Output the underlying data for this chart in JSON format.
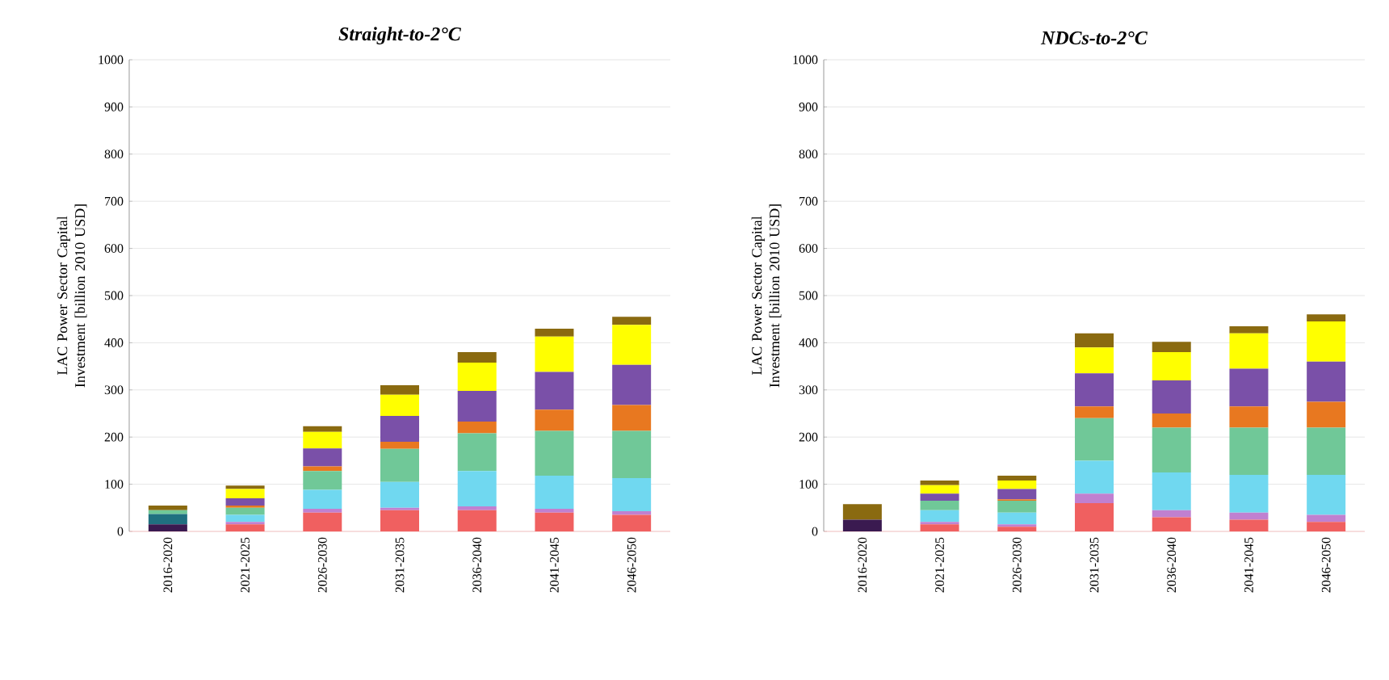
{
  "chart_data": [
    {
      "type": "bar",
      "stacked": true,
      "title": "*Straight-to-2°C*",
      "ylabel": "LAC Power Sector Capital Investment [billion 2010 USD]",
      "categories": [
        "2016-2020",
        "2021-2025",
        "2026-2030",
        "2031-2035",
        "2036-2040",
        "2041-2045",
        "2046-2050"
      ],
      "ylim": [
        0,
        1000
      ],
      "yticks": [
        0,
        100,
        200,
        300,
        400,
        500,
        600,
        700,
        800,
        900,
        1000
      ],
      "grid": "y",
      "series": [
        {
          "color": "#3a1a50",
          "values": [
            15,
            0,
            0,
            0,
            0,
            0,
            0
          ]
        },
        {
          "color": "#207080",
          "values": [
            22,
            0,
            0,
            0,
            0,
            0,
            0
          ]
        },
        {
          "color": "#f06060",
          "values": [
            0,
            15,
            40,
            45,
            45,
            40,
            35
          ]
        },
        {
          "color": "#c080d0",
          "values": [
            0,
            5,
            8,
            5,
            8,
            8,
            8
          ]
        },
        {
          "color": "#70d8f0",
          "values": [
            0,
            15,
            40,
            55,
            75,
            70,
            70
          ]
        },
        {
          "color": "#70c898",
          "values": [
            8,
            15,
            40,
            70,
            80,
            95,
            100
          ]
        },
        {
          "color": "#e87820",
          "values": [
            0,
            5,
            10,
            15,
            25,
            45,
            55
          ]
        },
        {
          "color": "#7a50a8",
          "values": [
            0,
            15,
            38,
            55,
            65,
            80,
            85
          ]
        },
        {
          "color": "#ffff00",
          "values": [
            0,
            20,
            35,
            45,
            60,
            75,
            85
          ]
        },
        {
          "color": "#8a6a10",
          "values": [
            10,
            7,
            12,
            20,
            22,
            17,
            17
          ]
        }
      ]
    },
    {
      "type": "bar",
      "stacked": true,
      "title": "*NDCs-to-2°C*",
      "ylabel": "LAC Power Sector Capital Investment [billion 2010 USD]",
      "categories": [
        "2016-2020",
        "2021-2025",
        "2026-2030",
        "2031-2035",
        "2036-2040",
        "2041-2045",
        "2046-2050"
      ],
      "ylim": [
        0,
        1000
      ],
      "yticks": [
        0,
        100,
        200,
        300,
        400,
        500,
        600,
        700,
        800,
        900,
        1000
      ],
      "grid": "y",
      "series": [
        {
          "color": "#3a1a50",
          "values": [
            25,
            0,
            0,
            0,
            0,
            0,
            0
          ]
        },
        {
          "color": "#207080",
          "values": [
            0,
            0,
            0,
            0,
            0,
            0,
            0
          ]
        },
        {
          "color": "#f06060",
          "values": [
            0,
            15,
            10,
            60,
            30,
            25,
            20
          ]
        },
        {
          "color": "#c080d0",
          "values": [
            0,
            5,
            5,
            20,
            15,
            15,
            15
          ]
        },
        {
          "color": "#70d8f0",
          "values": [
            0,
            25,
            25,
            70,
            80,
            80,
            85
          ]
        },
        {
          "color": "#70c898",
          "values": [
            0,
            20,
            25,
            90,
            95,
            100,
            100
          ]
        },
        {
          "color": "#e87820",
          "values": [
            0,
            0,
            3,
            25,
            30,
            45,
            55
          ]
        },
        {
          "color": "#7a50a8",
          "values": [
            0,
            15,
            22,
            70,
            70,
            80,
            85
          ]
        },
        {
          "color": "#ffff00",
          "values": [
            0,
            18,
            18,
            55,
            60,
            75,
            85
          ]
        },
        {
          "color": "#8a6a10",
          "values": [
            33,
            10,
            10,
            30,
            22,
            15,
            15
          ]
        }
      ]
    }
  ]
}
